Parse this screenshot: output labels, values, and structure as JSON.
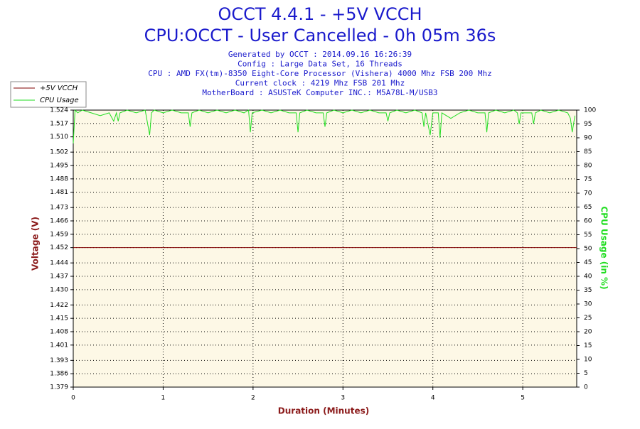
{
  "chart_data": {
    "type": "line",
    "title": "OCCT 4.4.1 - +5V VCCH",
    "subtitle": "CPU:OCCT - User Cancelled - 0h 05m 36s",
    "info": [
      "Generated by OCCT : 2014.09.16 16:26:39",
      "Config : Large Data Set, 16 Threads",
      "CPU : AMD FX(tm)-8350 Eight-Core Processor (Vishera) 4000 Mhz FSB 200 Mhz",
      "Current clock : 4219 Mhz FSB 201 Mhz",
      "MotherBoard : ASUSTeK Computer INC.: M5A78L-M/USB3"
    ],
    "x_label": "Duration (Minutes)",
    "y_label": "Voltage (V)",
    "y2_label": "CPU Usage (in %)",
    "xlim": [
      0,
      5.6
    ],
    "xticks": [
      0,
      1,
      2,
      3,
      4,
      5
    ],
    "ylim": [
      1.379,
      1.524
    ],
    "yticks": [
      1.379,
      1.386,
      1.393,
      1.401,
      1.408,
      1.415,
      1.422,
      {
        "value": 1.43,
        "label": "1.430"
      },
      1.437,
      1.444,
      1.452,
      1.459,
      1.466,
      1.473,
      1.481,
      1.488,
      1.495,
      1.502,
      {
        "value": 1.51,
        "label": "1.510"
      },
      1.517,
      1.524
    ],
    "y2lim": [
      0,
      100
    ],
    "y2ticks": [
      0,
      5,
      10,
      15,
      20,
      25,
      30,
      35,
      40,
      45,
      50,
      55,
      60,
      65,
      70,
      75,
      80,
      85,
      90,
      95,
      100
    ],
    "grid": true,
    "legend": "top-left",
    "series": [
      {
        "name": "+5V VCCH",
        "color": "#800000",
        "x": [
          0,
          5.6
        ],
        "values": [
          1.452,
          1.452
        ]
      },
      {
        "name": "CPU Usage",
        "color": "#22dd22",
        "axis": "y2",
        "x": [
          0,
          0.02,
          0.05,
          0.1,
          0.2,
          0.3,
          0.4,
          0.45,
          0.48,
          0.5,
          0.52,
          0.6,
          0.7,
          0.8,
          0.85,
          0.87,
          0.9,
          1.0,
          1.1,
          1.2,
          1.28,
          1.3,
          1.32,
          1.4,
          1.5,
          1.6,
          1.7,
          1.8,
          1.9,
          1.95,
          1.97,
          1.99,
          2.1,
          2.2,
          2.3,
          2.4,
          2.48,
          2.5,
          2.52,
          2.6,
          2.7,
          2.78,
          2.8,
          2.82,
          2.9,
          3.0,
          3.1,
          3.2,
          3.3,
          3.4,
          3.48,
          3.5,
          3.52,
          3.6,
          3.7,
          3.8,
          3.88,
          3.9,
          3.92,
          3.97,
          4.0,
          4.06,
          4.08,
          4.1,
          4.2,
          4.3,
          4.4,
          4.5,
          4.58,
          4.6,
          4.62,
          4.7,
          4.8,
          4.9,
          4.94,
          4.96,
          4.98,
          5.1,
          5.12,
          5.14,
          5.2,
          5.3,
          5.4,
          5.5,
          5.53,
          5.55,
          5.58
        ],
        "values": [
          88,
          100,
          99,
          100,
          99,
          98,
          99,
          96,
          99,
          96,
          99,
          100,
          99,
          100,
          91,
          99,
          100,
          99,
          100,
          99,
          99,
          94,
          99,
          100,
          99,
          100,
          99,
          100,
          99,
          100,
          92,
          99,
          100,
          99,
          100,
          99,
          99,
          92,
          99,
          100,
          99,
          99,
          94,
          99,
          100,
          99,
          100,
          99,
          100,
          99,
          99,
          96,
          99,
          100,
          99,
          100,
          99,
          94,
          99,
          91,
          99,
          99,
          90,
          99,
          97,
          99,
          100,
          99,
          99,
          92,
          99,
          100,
          99,
          100,
          99,
          95,
          99,
          99,
          95,
          99,
          100,
          99,
          100,
          99,
          97,
          92,
          98
        ]
      }
    ]
  }
}
